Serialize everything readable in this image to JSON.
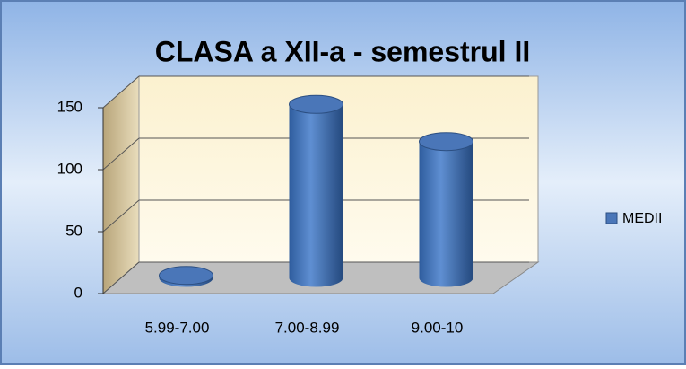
{
  "chart_data": {
    "type": "bar",
    "title": "CLASA  a XII-a - semestrul II",
    "categories": [
      "5.99-7.00",
      "7.00-8.99",
      "9.00-10"
    ],
    "series": [
      {
        "name": "MEDII",
        "color": "#4a76b8",
        "values": [
          2,
          140,
          110
        ]
      }
    ],
    "ylim": [
      0,
      150
    ],
    "yticks": [
      0,
      50,
      100,
      150
    ],
    "grid": true,
    "legend": "right"
  }
}
